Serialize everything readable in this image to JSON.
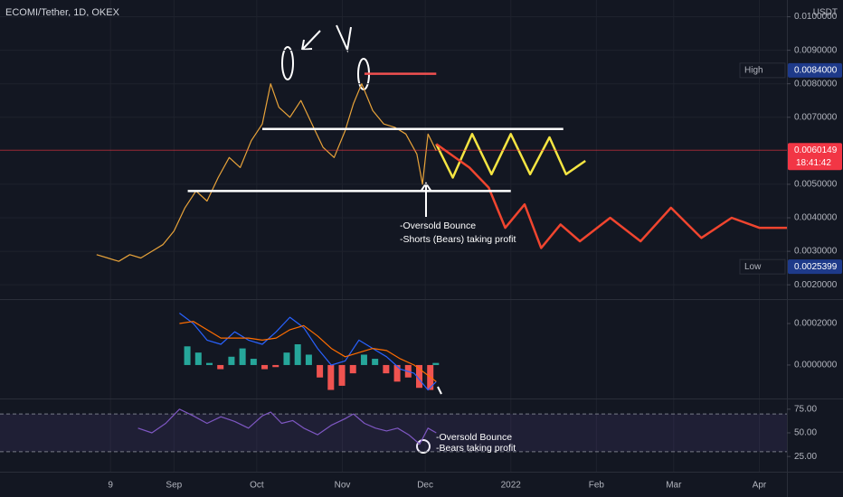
{
  "title": "ECOMI/Tether, 1D, OKEX",
  "currency": "USDT",
  "x_axis": {
    "xlim": [
      -40,
      245
    ],
    "xticks": [
      {
        "value": 0,
        "label": "9"
      },
      {
        "value": 23,
        "label": "Sep"
      },
      {
        "value": 53,
        "label": "Oct"
      },
      {
        "value": 84,
        "label": "Nov"
      },
      {
        "value": 114,
        "label": "Dec"
      },
      {
        "value": 145,
        "label": "2022"
      },
      {
        "value": 176,
        "label": "Feb"
      },
      {
        "value": 204,
        "label": "Mar"
      },
      {
        "value": 235,
        "label": "Apr"
      }
    ]
  },
  "chart_data": [
    {
      "type": "line",
      "ylim": [
        0.0016,
        0.0105
      ],
      "grid": true,
      "yticks": [
        {
          "value": 0.01,
          "label": "0.0100000"
        },
        {
          "value": 0.009,
          "label": "0.0090000"
        },
        {
          "value": 0.008,
          "label": "0.0080000"
        },
        {
          "value": 0.007,
          "label": "0.0070000"
        },
        {
          "value": 0.005,
          "label": "0.0050000"
        },
        {
          "value": 0.004,
          "label": "0.0040000"
        },
        {
          "value": 0.003,
          "label": "0.0030000"
        },
        {
          "value": 0.002,
          "label": "0.0020000"
        }
      ],
      "series": [
        {
          "color": "#e8a33a",
          "x": [
            -5,
            -1,
            3,
            7,
            11,
            15,
            19,
            23,
            27,
            31,
            35,
            39,
            43,
            47,
            51,
            55,
            58,
            61,
            65,
            69,
            73,
            77,
            81,
            85,
            88,
            91,
            95,
            99,
            103,
            107,
            111,
            113,
            115,
            118
          ],
          "values": [
            0.0029,
            0.0028,
            0.0027,
            0.0029,
            0.0028,
            0.003,
            0.0032,
            0.0036,
            0.0043,
            0.0048,
            0.0045,
            0.0052,
            0.0058,
            0.0055,
            0.0063,
            0.0068,
            0.008,
            0.0073,
            0.007,
            0.0075,
            0.0068,
            0.0061,
            0.0058,
            0.0066,
            0.0074,
            0.008,
            0.0072,
            0.0068,
            0.0067,
            0.0065,
            0.0059,
            0.005,
            0.0065,
            0.006
          ]
        },
        {
          "color": "#f5e542",
          "x": [
            118,
            124,
            131,
            138,
            145,
            152,
            159,
            165,
            172
          ],
          "values": [
            0.0062,
            0.0052,
            0.0065,
            0.0053,
            0.0065,
            0.0053,
            0.0064,
            0.0053,
            0.0057
          ]
        },
        {
          "color": "#f0452f",
          "x": [
            118,
            130,
            137,
            143,
            150,
            156,
            163,
            170,
            181,
            192,
            203,
            214,
            225,
            235,
            245
          ],
          "values": [
            0.0062,
            0.0055,
            0.0049,
            0.0037,
            0.0044,
            0.0031,
            0.0038,
            0.0033,
            0.004,
            0.0033,
            0.0043,
            0.0034,
            0.004,
            0.0037,
            0.0037
          ]
        }
      ],
      "levels": [
        {
          "color": "#ffffff",
          "value": 0.00665,
          "x": [
            55,
            164
          ]
        },
        {
          "color": "#ffffff",
          "value": 0.0048,
          "x": [
            28,
            145
          ]
        },
        {
          "color": "#f05050",
          "value": 0.0083,
          "x": [
            92,
            118
          ]
        }
      ],
      "high": {
        "text": "High",
        "value": 0.0084,
        "label": "0.0084000"
      },
      "low": {
        "text": "Low",
        "value": 0.0025399,
        "label": "0.0025399"
      },
      "last": {
        "value": 0.0060149,
        "label": "0.0060149",
        "countdown": "18:41:42"
      },
      "annotations": [
        "-Oversold Bounce",
        "-Shorts (Bears) taking profit"
      ]
    },
    {
      "type": "bar",
      "ylim": [
        -0.000157,
        0.000309
      ],
      "up_color": "#26a69a",
      "down_color": "#ef5350",
      "yticks": [
        {
          "value": 0.0002,
          "label": "0.0002000"
        },
        {
          "value": 0,
          "label": "0.0000000"
        }
      ],
      "x": [
        28,
        32,
        36,
        40,
        44,
        48,
        52,
        56,
        60,
        64,
        68,
        72,
        76,
        80,
        84,
        88,
        92,
        96,
        100,
        104,
        108,
        112,
        116,
        118
      ],
      "values": [
        9e-05,
        6e-05,
        1e-05,
        -2e-05,
        4e-05,
        8e-05,
        3e-05,
        -2e-05,
        -1e-05,
        6e-05,
        0.0001,
        5e-05,
        -6e-05,
        -0.00012,
        -0.0001,
        -4e-05,
        5e-05,
        3e-05,
        -4e-05,
        -8e-05,
        -6e-05,
        -0.00011,
        -0.00012,
        1e-05
      ],
      "series": [
        {
          "color": "#2962ff",
          "x": [
            25,
            30,
            35,
            40,
            45,
            50,
            55,
            60,
            65,
            70,
            75,
            80,
            85,
            90,
            95,
            100,
            105,
            110,
            115,
            118
          ],
          "values": [
            0.00025,
            0.0002,
            0.00012,
            0.0001,
            0.00016,
            0.00012,
            0.0001,
            0.00016,
            0.00023,
            0.00018,
            8e-05,
            0.0,
            2e-05,
            0.00012,
            8e-05,
            4e-05,
            -2e-05,
            -4e-05,
            -0.00012,
            -8e-05
          ]
        },
        {
          "color": "#ff6d00",
          "x": [
            25,
            30,
            35,
            40,
            45,
            50,
            55,
            60,
            65,
            70,
            75,
            80,
            85,
            90,
            95,
            100,
            105,
            110,
            115,
            118
          ],
          "values": [
            0.0002,
            0.00021,
            0.00017,
            0.00013,
            0.00013,
            0.00013,
            0.00012,
            0.00013,
            0.00017,
            0.00019,
            0.00014,
            8e-05,
            4e-05,
            6e-05,
            8e-05,
            7e-05,
            3e-05,
            0.0,
            -5e-05,
            -8e-05
          ]
        }
      ]
    },
    {
      "type": "line",
      "ylim": [
        10.8,
        84.4
      ],
      "band": [
        30,
        70
      ],
      "band_color": "#7e57c2",
      "yticks": [
        {
          "value": 75,
          "label": "75.00"
        },
        {
          "value": 50,
          "label": "50.00"
        },
        {
          "value": 25,
          "label": "25.00"
        }
      ],
      "series": [
        {
          "color": "#7e57c2",
          "x": [
            10,
            15,
            20,
            25,
            30,
            35,
            40,
            45,
            50,
            55,
            58,
            62,
            66,
            70,
            75,
            80,
            85,
            88,
            92,
            96,
            100,
            104,
            108,
            112,
            115,
            118
          ],
          "values": [
            55,
            50,
            60,
            75,
            68,
            60,
            67,
            62,
            55,
            68,
            72,
            60,
            63,
            55,
            48,
            58,
            65,
            70,
            60,
            55,
            52,
            55,
            48,
            38,
            55,
            50
          ]
        }
      ],
      "annotations": [
        "-Oversold Bounce",
        "-Bears taking profit"
      ]
    }
  ]
}
